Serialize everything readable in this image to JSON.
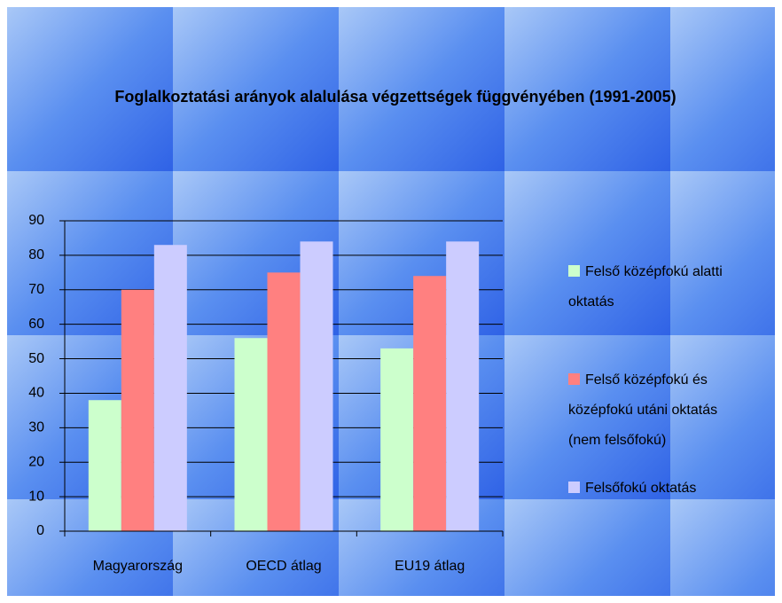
{
  "chart_data": {
    "type": "bar",
    "title": "Foglalkoztatási arányok alalulása végzettségek függvényében (1991-2005)",
    "categories": [
      "Magyarország",
      "OECD átlag",
      "EU19 átlag"
    ],
    "series": [
      {
        "name": "Felső középfokú alatti oktatás",
        "color": "#ccffcc",
        "values": [
          38,
          56,
          53
        ]
      },
      {
        "name": "Felső középfokú és középfokú utáni oktatás (nem felsőfokú)",
        "color": "#ff8080",
        "values": [
          70,
          75,
          74
        ]
      },
      {
        "name": "Felsőfokú oktatás",
        "color": "#ccccff",
        "values": [
          83,
          84,
          84
        ]
      }
    ],
    "ylim": [
      0,
      90
    ],
    "yticks": [
      0,
      10,
      20,
      30,
      40,
      50,
      60,
      70,
      80,
      90
    ],
    "grid": true,
    "legend": "right"
  }
}
